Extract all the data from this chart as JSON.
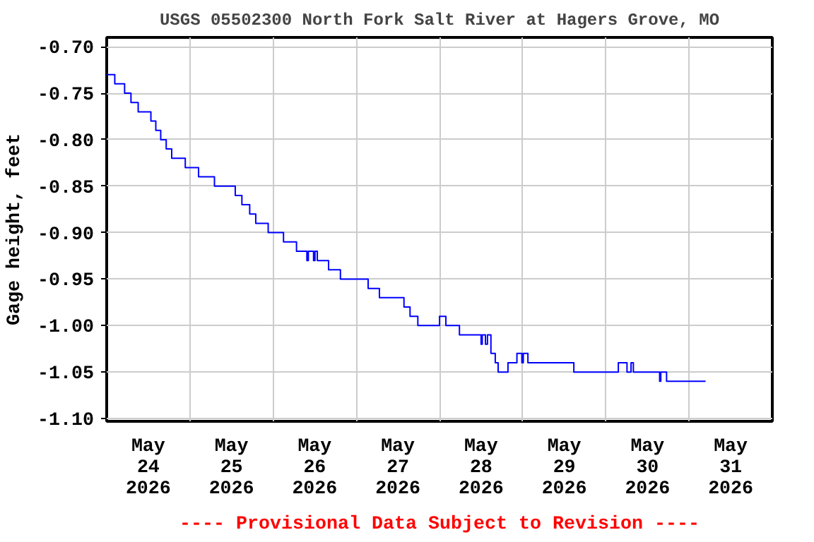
{
  "chart_data": {
    "type": "step",
    "title": "USGS 05502300 North Fork Salt River at Hagers Grove, MO",
    "ylabel": "Gage height, feet",
    "annotations": [
      "---- Provisional Data Subject to Revision ----"
    ],
    "x": [
      "2026-05-24T00:00",
      "2026-05-24T02:20",
      "2026-05-24T05:10",
      "2026-05-24T07:00",
      "2026-05-24T09:05",
      "2026-05-24T12:45",
      "2026-05-24T14:10",
      "2026-05-24T15:35",
      "2026-05-24T17:10",
      "2026-05-24T18:45",
      "2026-05-24T22:40",
      "2026-05-25T02:30",
      "2026-05-25T07:05",
      "2026-05-25T13:05",
      "2026-05-25T15:00",
      "2026-05-25T17:15",
      "2026-05-25T19:00",
      "2026-05-25T22:35",
      "2026-05-26T03:00",
      "2026-05-26T06:45",
      "2026-05-26T09:45",
      "2026-05-26T10:10",
      "2026-05-26T11:40",
      "2026-05-26T12:05",
      "2026-05-26T12:45",
      "2026-05-26T16:00",
      "2026-05-26T19:25",
      "2026-05-27T03:25",
      "2026-05-27T06:40",
      "2026-05-27T13:45",
      "2026-05-27T15:30",
      "2026-05-27T17:45",
      "2026-05-28T00:00",
      "2026-05-28T01:50",
      "2026-05-28T05:45",
      "2026-05-28T12:00",
      "2026-05-28T12:20",
      "2026-05-28T13:15",
      "2026-05-28T13:50",
      "2026-05-28T14:50",
      "2026-05-28T16:05",
      "2026-05-28T16:55",
      "2026-05-28T19:45",
      "2026-05-28T22:20",
      "2026-05-28T23:45",
      "2026-05-29T00:10",
      "2026-05-29T01:30",
      "2026-05-29T14:45",
      "2026-05-30T03:35",
      "2026-05-30T06:05",
      "2026-05-30T07:15",
      "2026-05-30T07:55",
      "2026-05-30T15:30",
      "2026-05-30T15:50",
      "2026-05-30T17:30",
      "2026-05-31T04:45"
    ],
    "series": [
      {
        "color": "#0000ff",
        "values": [
          -0.73,
          -0.74,
          -0.75,
          -0.76,
          -0.77,
          -0.78,
          -0.79,
          -0.8,
          -0.81,
          -0.82,
          -0.83,
          -0.84,
          -0.85,
          -0.86,
          -0.87,
          -0.88,
          -0.89,
          -0.9,
          -0.91,
          -0.92,
          -0.93,
          -0.92,
          -0.93,
          -0.92,
          -0.93,
          -0.94,
          -0.95,
          -0.96,
          -0.97,
          -0.98,
          -0.99,
          -1.0,
          -0.99,
          -1.0,
          -1.01,
          -1.02,
          -1.01,
          -1.02,
          -1.01,
          -1.03,
          -1.04,
          -1.05,
          -1.04,
          -1.03,
          -1.04,
          -1.03,
          -1.04,
          -1.05,
          -1.04,
          -1.05,
          -1.04,
          -1.05,
          -1.06,
          -1.05,
          -1.06,
          -1.06
        ]
      }
    ],
    "xlim": [
      "2026-05-24T00:00",
      "2026-06-01T00:00"
    ],
    "xticks": [
      {
        "value": "2026-05-24T00:00",
        "label": null
      },
      {
        "value": "2026-05-24T12:00",
        "label": "May\n24\n2026"
      },
      {
        "value": "2026-05-25T00:00",
        "label": null
      },
      {
        "value": "2026-05-25T12:00",
        "label": "May\n25\n2026"
      },
      {
        "value": "2026-05-26T00:00",
        "label": null
      },
      {
        "value": "2026-05-26T12:00",
        "label": "May\n26\n2026"
      },
      {
        "value": "2026-05-27T00:00",
        "label": null
      },
      {
        "value": "2026-05-27T12:00",
        "label": "May\n27\n2026"
      },
      {
        "value": "2026-05-28T00:00",
        "label": null
      },
      {
        "value": "2026-05-28T12:00",
        "label": "May\n28\n2026"
      },
      {
        "value": "2026-05-29T00:00",
        "label": null
      },
      {
        "value": "2026-05-29T12:00",
        "label": "May\n29\n2026"
      },
      {
        "value": "2026-05-30T00:00",
        "label": null
      },
      {
        "value": "2026-05-30T12:00",
        "label": "May\n30\n2026"
      },
      {
        "value": "2026-05-31T00:00",
        "label": null
      },
      {
        "value": "2026-05-31T12:00",
        "label": "May\n31\n2026"
      },
      {
        "value": "2026-06-01T00:00",
        "label": null
      }
    ],
    "ylim": [
      -1.103,
      -0.69
    ],
    "yticks": [
      {
        "value": -0.7,
        "label": "-0.70"
      },
      {
        "value": -0.75,
        "label": "-0.75"
      },
      {
        "value": -0.8,
        "label": "-0.80"
      },
      {
        "value": -0.85,
        "label": "-0.85"
      },
      {
        "value": -0.9,
        "label": "-0.90"
      },
      {
        "value": -0.95,
        "label": "-0.95"
      },
      {
        "value": -1.0,
        "label": "-1.00"
      },
      {
        "value": -1.05,
        "label": "-1.05"
      },
      {
        "value": -1.1,
        "label": "-1.10"
      }
    ],
    "grid": true,
    "line_style": "solid"
  }
}
